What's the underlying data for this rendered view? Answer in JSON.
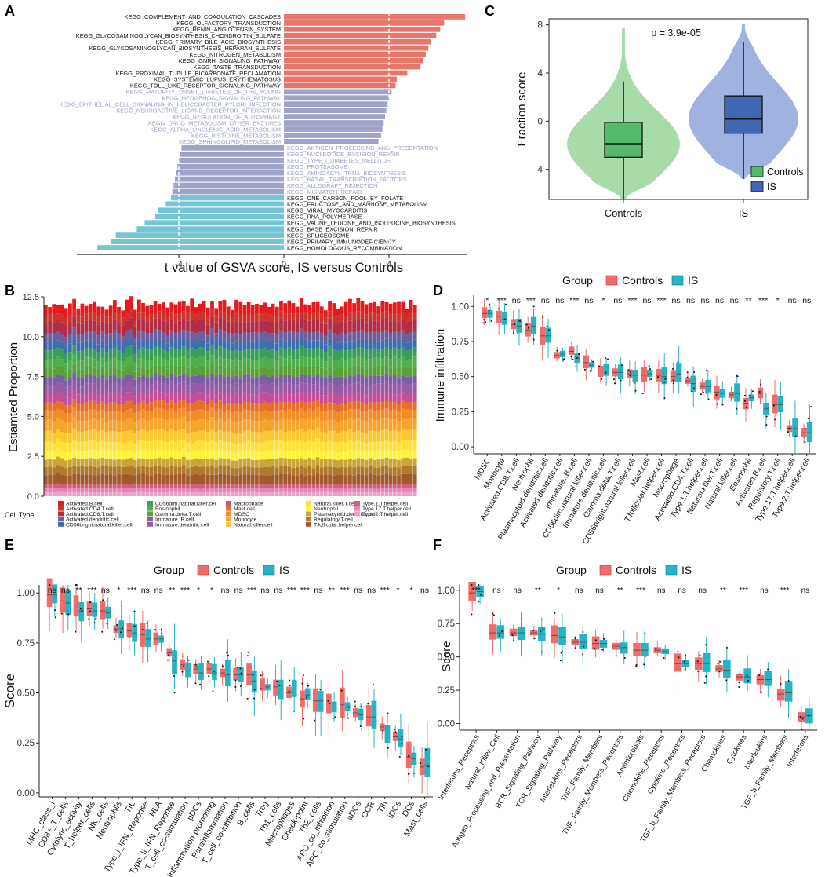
{
  "figure": {
    "panel_labels": [
      "A",
      "B",
      "C",
      "D",
      "E",
      "F"
    ]
  },
  "colors": {
    "controls": "#f26b6b",
    "is": "#25b3c6",
    "bar_up": "#e8776b",
    "bar_down": "#74c6d6",
    "bar_ns": "#9fa3c8",
    "violin_controls": "#a3d9a5",
    "violin_is": "#9aaede",
    "box_controls": "#55bb6a",
    "box_is": "#3f67b2"
  },
  "chart_data": [
    {
      "panel": "A",
      "type": "bar",
      "orientation": "horizontal",
      "xlabel": "t value of GSVA score, IS versus Controls",
      "xlim": [
        -8,
        8
      ],
      "xticks": [
        -4,
        0,
        4
      ],
      "threshold_lines": [
        -4,
        4
      ],
      "categories": [
        "KEGG_COMPLEMENT_AND_COAGULATION_CASCADES",
        "KEGG_OLFACTORY_TRANSDUCTION",
        "KEGG_RENIN_ANGIOTENSIN_SYSTEM",
        "KEGG_GLYCOSAMINOGLYCAN_BIOSYNTHESIS_CHONDROITIN_SULFATE",
        "KEGG_PRIMARY_BILE_ACID_BIOSYNTHESIS",
        "KEGG_GLYCOSAMINOGLYCAN_BIOSYNTHESIS_HEPARAN_SULFATE",
        "KEGG_NITROGEN_METABOLISM",
        "KEGG_GNRH_SIGNALING_PATHWAY",
        "KEGG_TASTE_TRANSDUCTION",
        "KEGG_PROXIMAL_TUBULE_BICARBONATE_RECLAMATION",
        "KEGG_SYSTEMIC_LUPUS_ERYTHEMATOSUS",
        "KEGG_TOLL_LIKE_RECEPTOR_SIGNALING_PATHWAY",
        "KEGG_MATURITY_ONSET_DIABETES_OF_THE_YOUNG",
        "KEGG_HEDGEHOG_SIGNALING_PATHWAY",
        "KEGG_EPITHELIAL_CELL_SIGNALING_IN_HELICOBACTER_PYLORI_INFECTION",
        "KEGG_NEUROACTIVE_LIGAND_RECEPTOR_INTERACTION",
        "KEGG_REGULATION_OF_AUTOPHAGY",
        "KEGG_DRUG_METABOLISM_OTHER_ENZYMES",
        "KEGG_ALPHA_LINOLENIC_ACID_METABOLISM",
        "KEGG_HISTIDINE_METABOLISM",
        "KEGG_SPHINGOLIPID_METABOLISM",
        "KEGG_ANTIGEN_PROCESSING_AND_PRESENTATION",
        "KEGG_NUCLEOTIDE_EXCISION_REPAIR",
        "KEGG_TYPE_I_DIABETES_MELLITUS",
        "KEGG_PROTEASOME",
        "KEGG_AMINOACYL_TRNA_BIOSYNTHESIS",
        "KEGG_BASAL_TRANSCRIPTION_FACTORS",
        "KEGG_ALLOGRAFT_REJECTION",
        "KEGG_MISMATCH_REPAIR",
        "KEGG_ONE_CARBON_POOL_BY_FOLATE",
        "KEGG_FRUCTOSE_AND_MANNOSE_METABOLISM",
        "KEGG_VIRAL_MYOCARDITIS",
        "KEGG_RNA_POLYMERASE",
        "KEGG_VALINE_LEUCINE_AND_ISOLEUCINE_BIOSYNTHESIS",
        "KEGG_BASE_EXCISION_REPAIR",
        "KEGG_SPLICEOSOME",
        "KEGG_PRIMARY_IMMUNODEFICIENCY",
        "KEGG_HOMOLOGOUS_RECOMBINATION"
      ],
      "values": [
        6.9,
        6.1,
        5.95,
        5.8,
        5.6,
        5.5,
        5.4,
        5.3,
        5.2,
        4.7,
        4.3,
        4.25,
        4.1,
        4.0,
        3.95,
        3.9,
        3.85,
        3.8,
        3.75,
        3.7,
        3.6,
        -3.9,
        -3.95,
        -4.0,
        -4.05,
        -4.1,
        -4.15,
        -4.2,
        -4.25,
        -4.3,
        -4.5,
        -4.8,
        -4.9,
        -5.3,
        -5.6,
        -6.4,
        -6.6,
        -7.1
      ],
      "groups": [
        "up",
        "up",
        "up",
        "up",
        "up",
        "up",
        "up",
        "up",
        "up",
        "up",
        "up",
        "up",
        "ns",
        "ns",
        "ns",
        "ns",
        "ns",
        "ns",
        "ns",
        "ns",
        "ns",
        "ns",
        "ns",
        "ns",
        "ns",
        "ns",
        "ns",
        "ns",
        "ns",
        "down",
        "down",
        "down",
        "down",
        "down",
        "down",
        "down",
        "down",
        "down"
      ]
    },
    {
      "panel": "B",
      "type": "bar",
      "stacked": true,
      "ylabel": "Estiamted Proportion",
      "ylim": [
        0,
        12.5
      ],
      "yticks": [
        "0.0",
        "2.5",
        "5.0",
        "7.5",
        "10.0",
        "12.5"
      ],
      "n_samples": 92,
      "legend_title": "Cell Type",
      "cell_types": [
        "Activated.B.cell",
        "Activated.CD4.T.cell",
        "Activated.CD8.T.cell",
        "Activated.dendritic.cell",
        "CD56bright.natural.killer.cell",
        "CD56dim.natural.killer.cell",
        "Eosinophil",
        "Gamma.delta.T.cell",
        "Immature..B.cell",
        "Immature.dendritic.cell",
        "Macrophage",
        "Mast.cell",
        "MDSC",
        "Monocyte",
        "Natural.killer.cell",
        "Natural.killer.T.cell",
        "Neutrophil",
        "Plasmacytoid.dendritic.cell",
        "Regulatory.T.cell",
        "T.follicular.helper.cell",
        "Type.1.T.helper.cell",
        "Type.17.T.helper.cell",
        "Type.2.T.helper.cell"
      ],
      "cell_colors": [
        "#e41a1c",
        "#c9342f",
        "#b02d45",
        "#6b5f9e",
        "#3c6fb0",
        "#3a9e5a",
        "#4fb04b",
        "#5a9f3a",
        "#7a5ea6",
        "#9b5aa4",
        "#c64d98",
        "#e76f28",
        "#f28c28",
        "#f6a52c",
        "#fbc831",
        "#ffe13a",
        "#fff23c",
        "#c9a53a",
        "#b07a2e",
        "#a05a2c",
        "#d0617a",
        "#e483b4",
        "#f0a0cc"
      ]
    },
    {
      "panel": "C",
      "type": "violin",
      "ylabel": "Fraction score",
      "ylim": [
        -6.5,
        8.5
      ],
      "yticks": [
        -4,
        0,
        4,
        8
      ],
      "categories": [
        "Controls",
        "IS"
      ],
      "pvalue_text": "p = 3.9e-05",
      "legend": [
        "Controls",
        "IS"
      ],
      "boxes": [
        {
          "group": "Controls",
          "min": -6.5,
          "q1": -3.0,
          "median": -1.9,
          "q3": -0.1,
          "max": 3.3,
          "violin_min": -6.5,
          "violin_max": 7.7
        },
        {
          "group": "IS",
          "min": -4.8,
          "q1": -1.0,
          "median": 0.2,
          "q3": 2.1,
          "max": 6.6,
          "violin_min": -4.8,
          "violin_max": 8.1
        }
      ]
    },
    {
      "panel": "D",
      "type": "box",
      "ylabel": "Immune infiltration",
      "legend_title": "Group",
      "legend": [
        "Controls",
        "IS"
      ],
      "ylim": [
        -0.05,
        1.08
      ],
      "yticks": [
        "0.00",
        "0.25",
        "0.50",
        "0.75",
        "1.00"
      ],
      "categories": [
        "MDSC",
        "Monocyte",
        "Activated.CD8.T.cell",
        "Neutrophil",
        "Plasmacytoid.dendritic.cell",
        "Activated.dendritic.cell",
        "Immature..B.cell",
        "CD56dim.natural.killer.cell",
        "Immature.dendritic.cell",
        "Gamma.delta.T.cell",
        "CD56bright.natural.killer.cell",
        "Mast.cell",
        "T.follicular.helper.cell",
        "Macrophage",
        "Activated.CD4.T.cell",
        "Type.1.T.helper.cell",
        "Natural.killer.T.cell",
        "Natural.killer.cell",
        "Eosinophil",
        "Activated.B.cell",
        "Regulatory.T.cell",
        "Type.17.T.helper.cell",
        "Type.2.T.helper.cell"
      ],
      "significance": [
        "*",
        "***",
        "ns",
        "***",
        "ns",
        "ns",
        "***",
        "ns",
        "*",
        "ns",
        "***",
        "ns",
        "***",
        "ns",
        "ns",
        "ns",
        "ns",
        "ns",
        "**",
        "***",
        "*",
        "ns",
        "ns"
      ],
      "controls_median": [
        0.95,
        0.93,
        0.87,
        0.83,
        0.79,
        0.65,
        0.68,
        0.6,
        0.54,
        0.53,
        0.52,
        0.51,
        0.51,
        0.5,
        0.47,
        0.43,
        0.39,
        0.37,
        0.31,
        0.38,
        0.3,
        0.13,
        0.1
      ],
      "is_median": [
        0.95,
        0.91,
        0.86,
        0.86,
        0.79,
        0.66,
        0.63,
        0.58,
        0.54,
        0.53,
        0.51,
        0.52,
        0.5,
        0.52,
        0.45,
        0.43,
        0.38,
        0.38,
        0.35,
        0.27,
        0.3,
        0.13,
        0.1
      ]
    },
    {
      "panel": "E",
      "type": "box",
      "ylabel": "Score",
      "legend_title": "Group",
      "legend": [
        "Controls",
        "IS"
      ],
      "ylim": [
        -0.02,
        1.04
      ],
      "yticks": [
        "0.00",
        "0.25",
        "0.50",
        "0.75",
        "1.00"
      ],
      "categories": [
        "MHC_class_I",
        "CD8+_T_cells",
        "Cytolytic_activity",
        "T_helper_cells",
        "NK_cells",
        "Neutrophils",
        "TIL",
        "Type_I_IFN_Reponse",
        "HLA",
        "Type_II_IFN_Reponse",
        "T_cell_co-stimulation",
        "pDCs",
        "Inflammation-promoting",
        "Parainflammation",
        "T_cell_co-inhibition",
        "B_cells",
        "Treg",
        "Th1_cells",
        "Macrophages",
        "Check-point",
        "Th2_cells",
        "APC_co_inhibition",
        "APC_co_stimulation",
        "aDCs",
        "CCR",
        "Tfh",
        "iDCs",
        "DCs",
        "Mast_cells"
      ],
      "significance": [
        "ns",
        "ns",
        "**",
        "***",
        "ns",
        "*",
        "***",
        "ns",
        "ns",
        "**",
        "***",
        "*",
        "*",
        "ns",
        "ns",
        "***",
        "ns",
        "ns",
        "***",
        "***",
        "ns",
        "**",
        "***",
        "ns",
        "ns",
        "***",
        "*",
        "*",
        "ns"
      ],
      "controls_median": [
        0.99,
        0.96,
        0.94,
        0.92,
        0.91,
        0.82,
        0.81,
        0.79,
        0.77,
        0.7,
        0.64,
        0.62,
        0.62,
        0.6,
        0.59,
        0.59,
        0.54,
        0.53,
        0.5,
        0.47,
        0.46,
        0.45,
        0.44,
        0.4,
        0.38,
        0.33,
        0.28,
        0.18,
        0.13
      ],
      "is_median": [
        0.99,
        0.95,
        0.91,
        0.91,
        0.9,
        0.82,
        0.8,
        0.77,
        0.77,
        0.66,
        0.61,
        0.6,
        0.6,
        0.59,
        0.59,
        0.56,
        0.53,
        0.52,
        0.52,
        0.49,
        0.46,
        0.43,
        0.43,
        0.39,
        0.38,
        0.3,
        0.27,
        0.17,
        0.14
      ]
    },
    {
      "panel": "F",
      "type": "box",
      "ylabel": "Score",
      "legend_title": "Group",
      "legend": [
        "Controls",
        "IS"
      ],
      "ylim": [
        -0.05,
        1.04
      ],
      "yticks": [
        "0.00",
        "0.25",
        "0.50",
        "0.75",
        "1.00"
      ],
      "categories": [
        "Interferons_Receptors",
        "Natural_Killer_Cell",
        "Antigen_Processing_and_Presentation",
        "BCR_Signaling_Pathway",
        "TCR_Signaling_Pathway",
        "Interleukins_Receptors",
        "TNF_Family_Members",
        "TNF_Family_Members_Receptors",
        "Antimicrobials",
        "Chemokine_Receptors",
        "Cytokine_Receptors",
        "TGF_b_Family_Members_Receptors",
        "Chemokines",
        "Cytokines",
        "Interleukins",
        "TGF_b_Family_Members",
        "Interferons"
      ],
      "significance": [
        "***",
        "ns",
        "ns",
        "**",
        "*",
        "ns",
        "ns",
        "**",
        "***",
        "ns",
        "ns",
        "ns",
        "**",
        "***",
        "ns",
        "***",
        "ns"
      ],
      "controls_median": [
        0.98,
        0.68,
        0.68,
        0.68,
        0.66,
        0.61,
        0.6,
        0.58,
        0.55,
        0.55,
        0.45,
        0.45,
        0.41,
        0.35,
        0.33,
        0.22,
        0.05
      ],
      "is_median": [
        0.99,
        0.68,
        0.68,
        0.67,
        0.65,
        0.61,
        0.6,
        0.57,
        0.55,
        0.54,
        0.45,
        0.45,
        0.4,
        0.35,
        0.33,
        0.23,
        0.06
      ]
    }
  ]
}
